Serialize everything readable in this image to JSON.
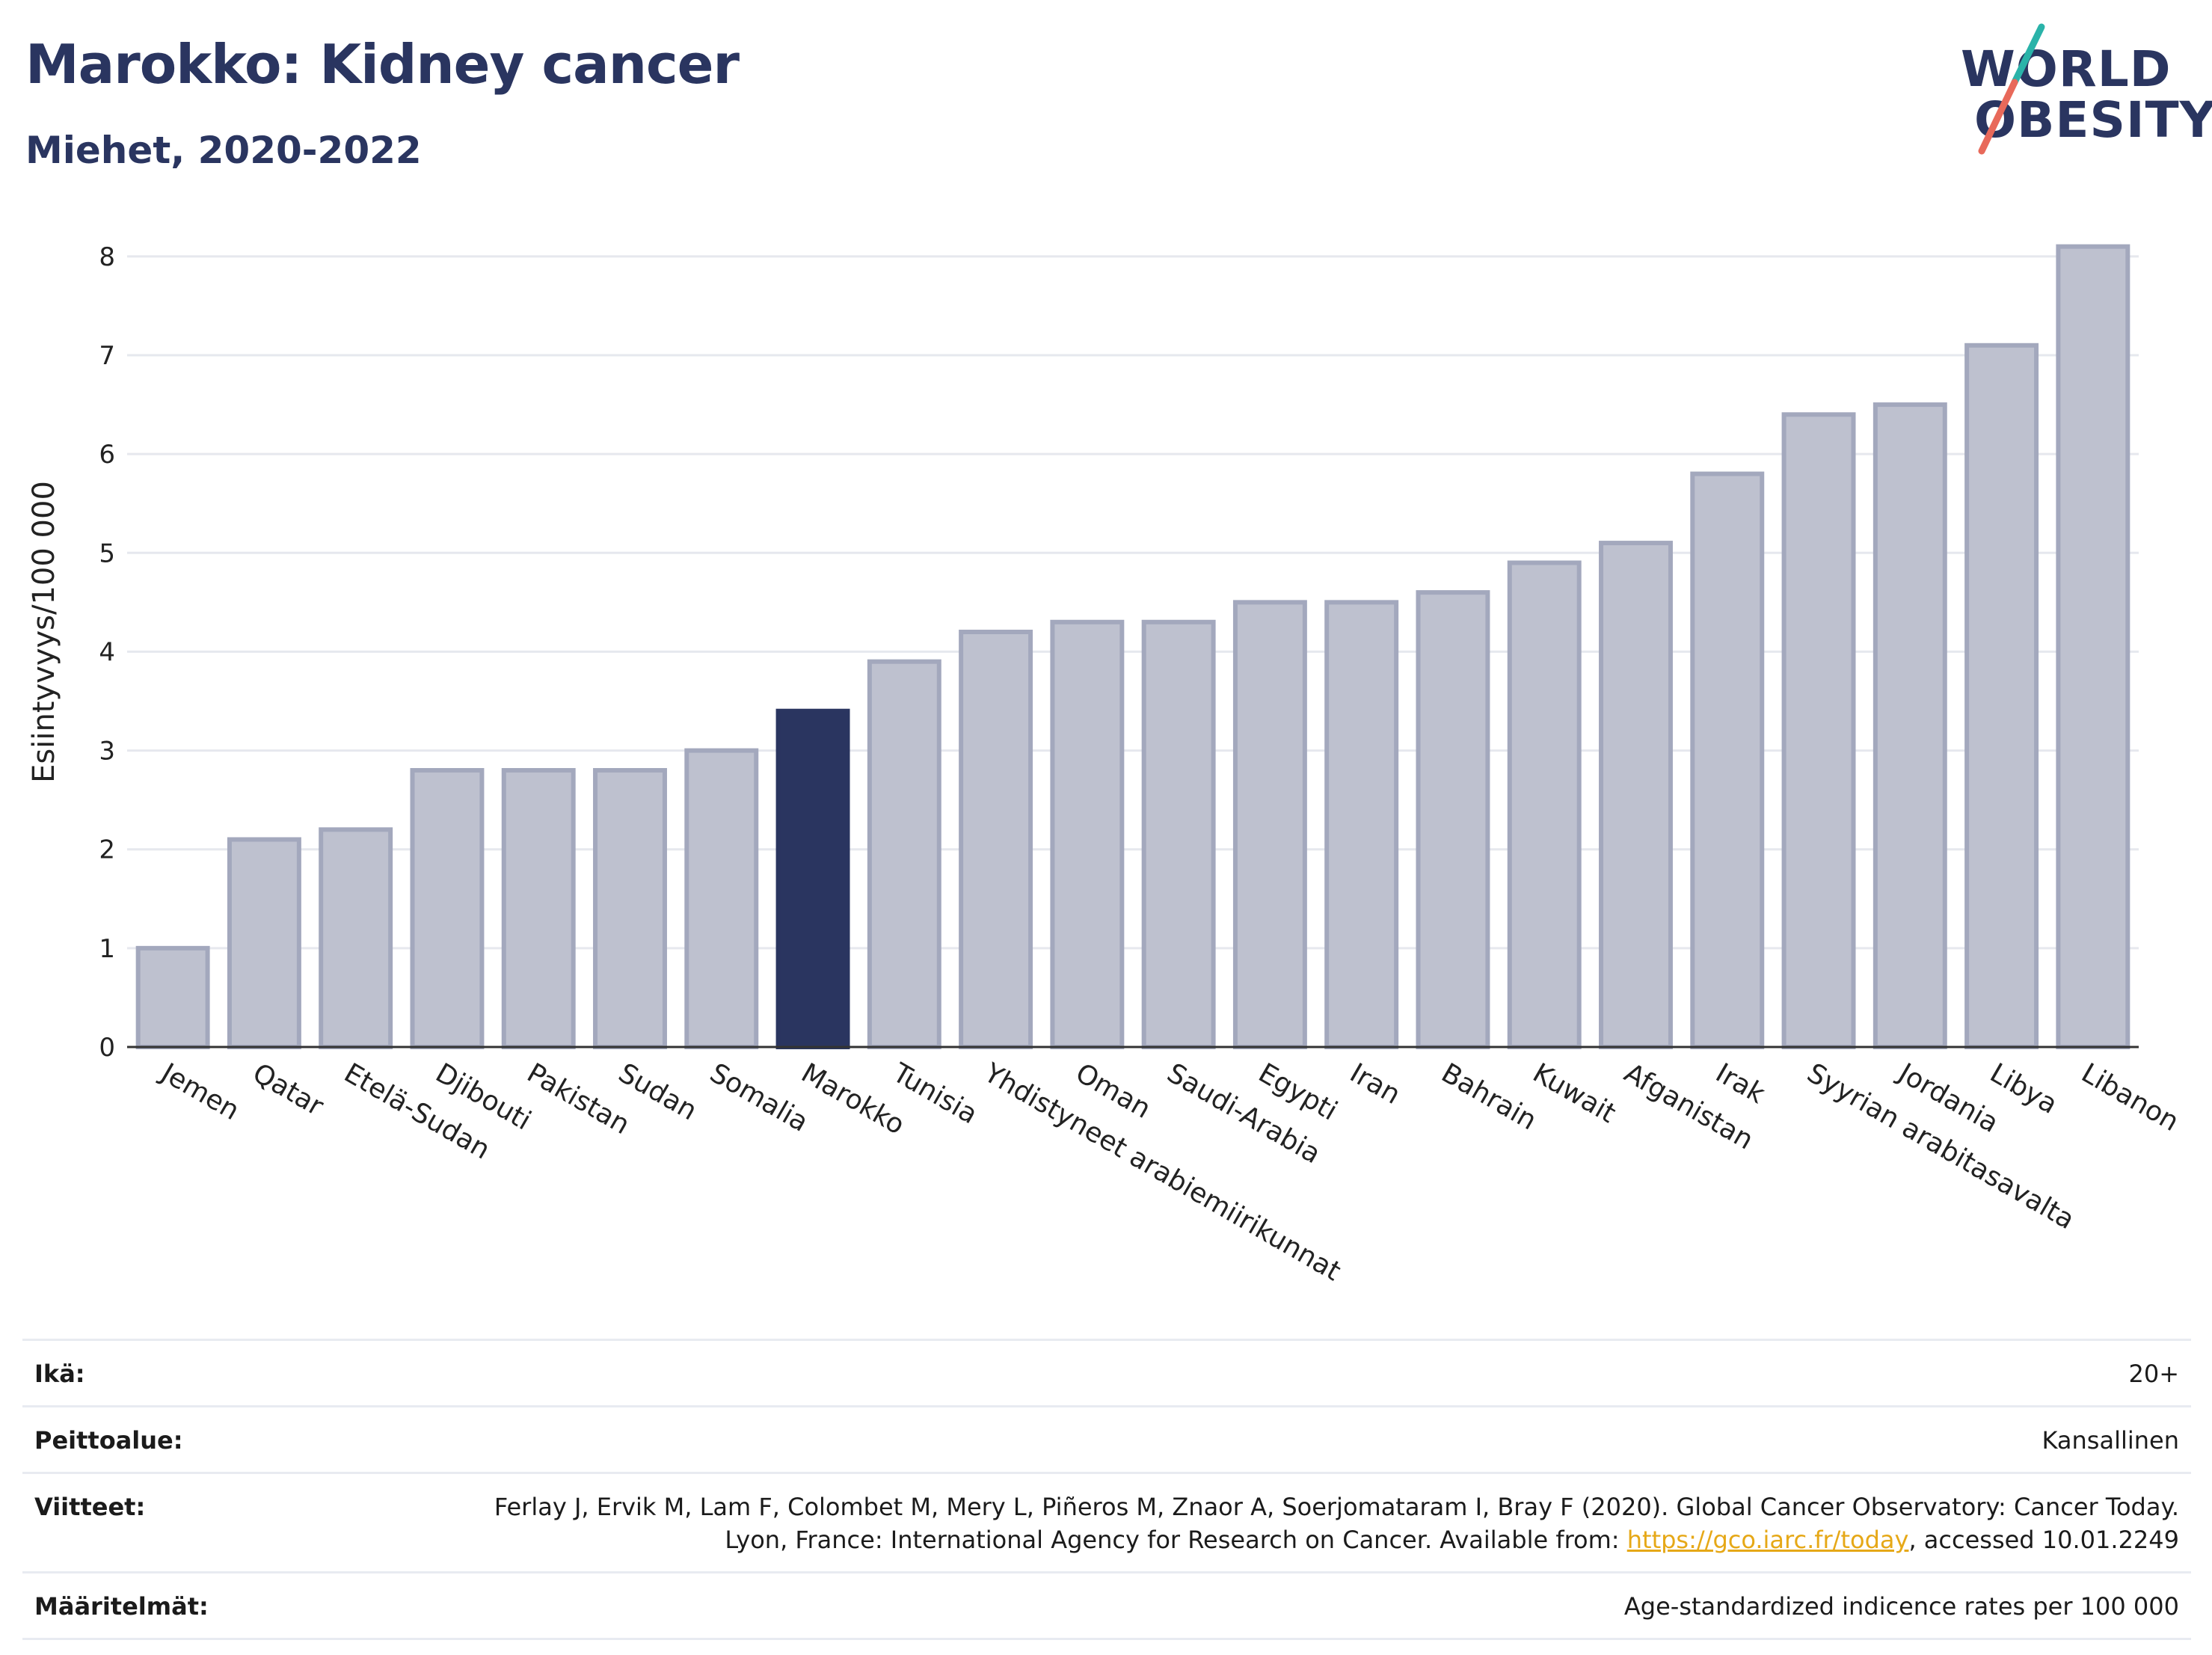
{
  "title": "Marokko: Kidney cancer",
  "subtitle": "Miehet, 2020-2022",
  "logo": {
    "line1": "WORLD",
    "line2": "OBESITY",
    "accent_teal": "#2ab3a9",
    "accent_red": "#e8695a"
  },
  "chart_data": {
    "type": "bar",
    "categories": [
      "Jemen",
      "Qatar",
      "Etelä-Sudan",
      "Djibouti",
      "Pakistan",
      "Sudan",
      "Somalia",
      "Marokko",
      "Tunisia",
      "Yhdistyneet arabiemiirikunnat",
      "Oman",
      "Saudi-Arabia",
      "Egypti",
      "Iran",
      "Bahrain",
      "Kuwait",
      "Afganistan",
      "Irak",
      "Syyrian arabitasavalta",
      "Jordania",
      "Libya",
      "Libanon"
    ],
    "values": [
      1.0,
      2.1,
      2.2,
      2.8,
      2.8,
      2.8,
      3.0,
      3.4,
      3.9,
      4.2,
      4.3,
      4.3,
      4.5,
      4.5,
      4.6,
      4.9,
      5.1,
      5.8,
      6.4,
      6.5,
      7.1,
      8.1
    ],
    "highlight": "Marokko",
    "ylabel": "Esiintyvyys/100 000",
    "ylim": [
      0,
      8.4
    ],
    "yticks": [
      0,
      1,
      2,
      3,
      4,
      5,
      6,
      7,
      8
    ],
    "grid": true,
    "colors": {
      "bar": "#bec1cf",
      "bar_border": "#a3a8bd",
      "highlight": "#2a3560"
    }
  },
  "meta": [
    {
      "key": "Ikä:",
      "value": "20+"
    },
    {
      "key": "Peittoalue:",
      "value": "Kansallinen"
    },
    {
      "key": "Viitteet:",
      "value_before": "Ferlay J, Ervik M, Lam F, Colombet M, Mery L, Piñeros M, Znaor A, Soerjomataram I, Bray F (2020). Global Cancer Observatory: Cancer Today. Lyon, France: International Agency for Research on Cancer. Available from: ",
      "link": "https://gco.iarc.fr/today",
      "value_after": ", accessed 10.01.2249"
    },
    {
      "key": "Määritelmät:",
      "value": "Age-standardized indicence rates per 100 000"
    }
  ]
}
